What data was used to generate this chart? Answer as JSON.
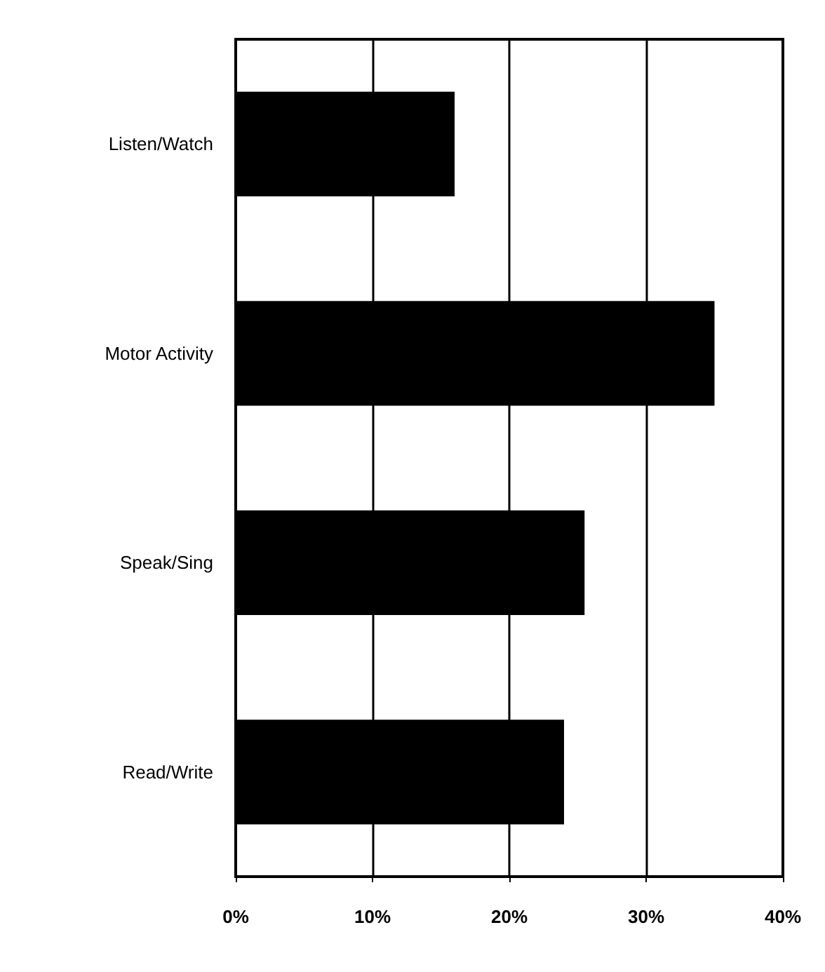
{
  "chart_data": {
    "type": "bar",
    "orientation": "horizontal",
    "categories": [
      "Listen/Watch",
      "Motor Activity",
      "Speak/Sing",
      "Read/Write"
    ],
    "values": [
      16,
      35,
      25.5,
      24
    ],
    "color": "#000000",
    "xlim": [
      0,
      40
    ],
    "xticks": [
      {
        "value": 0,
        "label": "0%"
      },
      {
        "value": 10,
        "label": "10%"
      },
      {
        "value": 20,
        "label": "20%"
      },
      {
        "value": 30,
        "label": "30%"
      },
      {
        "value": 40,
        "label": "40%"
      }
    ],
    "grid": "x"
  }
}
